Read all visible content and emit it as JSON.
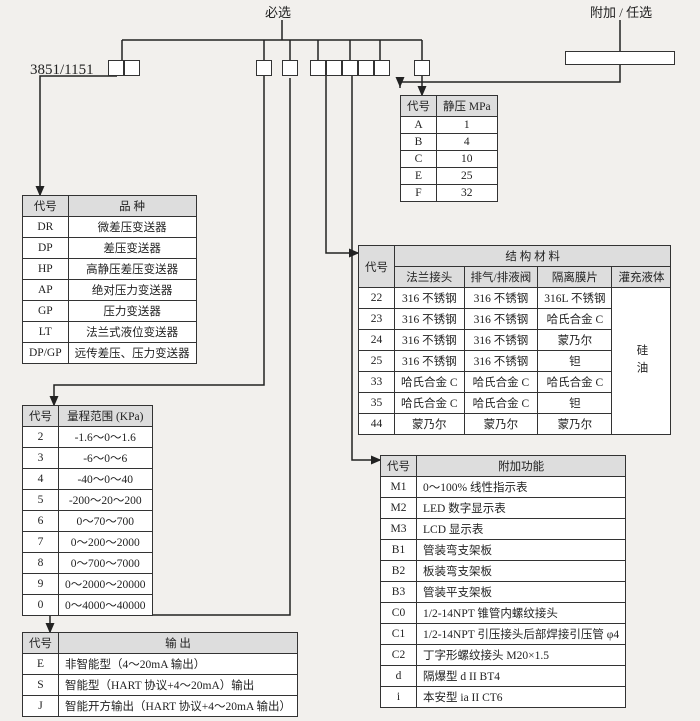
{
  "headers": {
    "required": "必选",
    "optional": "附加 / 任选",
    "model": "3851/1151"
  },
  "colors": {
    "bg": "#f2f0ed",
    "th_bg": "#dddddd",
    "border": "#333333",
    "cell_bg": "#ffffff"
  },
  "t1": {
    "cols": [
      "代号",
      "品 种"
    ],
    "rows": [
      [
        "DR",
        "微差压变送器"
      ],
      [
        "DP",
        "差压变送器"
      ],
      [
        "HP",
        "高静压差压变送器"
      ],
      [
        "AP",
        "绝对压力变送器"
      ],
      [
        "GP",
        "压力变送器"
      ],
      [
        "LT",
        "法兰式液位变送器"
      ],
      [
        "DP/GP",
        "远传差压、压力变送器"
      ]
    ]
  },
  "t2": {
    "cols": [
      "代号",
      "量程范围 (KPa)"
    ],
    "rows": [
      [
        "2",
        "-1.6～0～1.6"
      ],
      [
        "3",
        "-6～0～6"
      ],
      [
        "4",
        "-40～0～40"
      ],
      [
        "5",
        "-200～20～200"
      ],
      [
        "6",
        "0～70～700"
      ],
      [
        "7",
        "0～200～2000"
      ],
      [
        "8",
        "0～700～7000"
      ],
      [
        "9",
        "0～2000～20000"
      ],
      [
        "0",
        "0～4000～40000"
      ]
    ]
  },
  "t3": {
    "cols": [
      "代号",
      "输 出"
    ],
    "rows": [
      [
        "E",
        "非智能型（4～20mA 输出）"
      ],
      [
        "S",
        "智能型（HART 协议+4～20mA）输出"
      ],
      [
        "J",
        "智能开方输出（HART 协议+4～20mA 输出）"
      ]
    ]
  },
  "t4": {
    "cols": [
      "代号",
      "静压 MPa"
    ],
    "rows": [
      [
        "A",
        "1"
      ],
      [
        "B",
        "4"
      ],
      [
        "C",
        "10"
      ],
      [
        "E",
        "25"
      ],
      [
        "F",
        "32"
      ]
    ]
  },
  "t5": {
    "header_top": "结 构 材 料",
    "code": "代号",
    "subcols": [
      "法兰接头",
      "排气/排液阀",
      "隔离膜片",
      "灌充液体"
    ],
    "liquid": "硅油",
    "rows": [
      [
        "22",
        "316 不锈钢",
        "316 不锈钢",
        "316L 不锈钢"
      ],
      [
        "23",
        "316 不锈钢",
        "316 不锈钢",
        "哈氏合金 C"
      ],
      [
        "24",
        "316 不锈钢",
        "316 不锈钢",
        "蒙乃尔"
      ],
      [
        "25",
        "316 不锈钢",
        "316 不锈钢",
        "钽"
      ],
      [
        "33",
        "哈氏合金 C",
        "哈氏合金 C",
        "哈氏合金 C"
      ],
      [
        "35",
        "哈氏合金 C",
        "哈氏合金 C",
        "钽"
      ],
      [
        "44",
        "蒙乃尔",
        "蒙乃尔",
        "蒙乃尔"
      ]
    ]
  },
  "t6": {
    "cols": [
      "代号",
      "附加功能"
    ],
    "rows": [
      [
        "M1",
        "0～100% 线性指示表"
      ],
      [
        "M2",
        "LED 数字显示表"
      ],
      [
        "M3",
        "LCD 显示表"
      ],
      [
        "B1",
        "管装弯支架板"
      ],
      [
        "B2",
        "板装弯支架板"
      ],
      [
        "B3",
        "管装平支架板"
      ],
      [
        "C0",
        "1/2-14NPT 锥管内螺纹接头"
      ],
      [
        "C1",
        "1/2-14NPT 引压接头后部焊接引压管 φ4"
      ],
      [
        "C2",
        "丁字形螺纹接头 M20×1.5"
      ],
      [
        "d",
        "隔爆型 d II BT4"
      ],
      [
        "i",
        "本安型 ia II CT6"
      ]
    ]
  }
}
